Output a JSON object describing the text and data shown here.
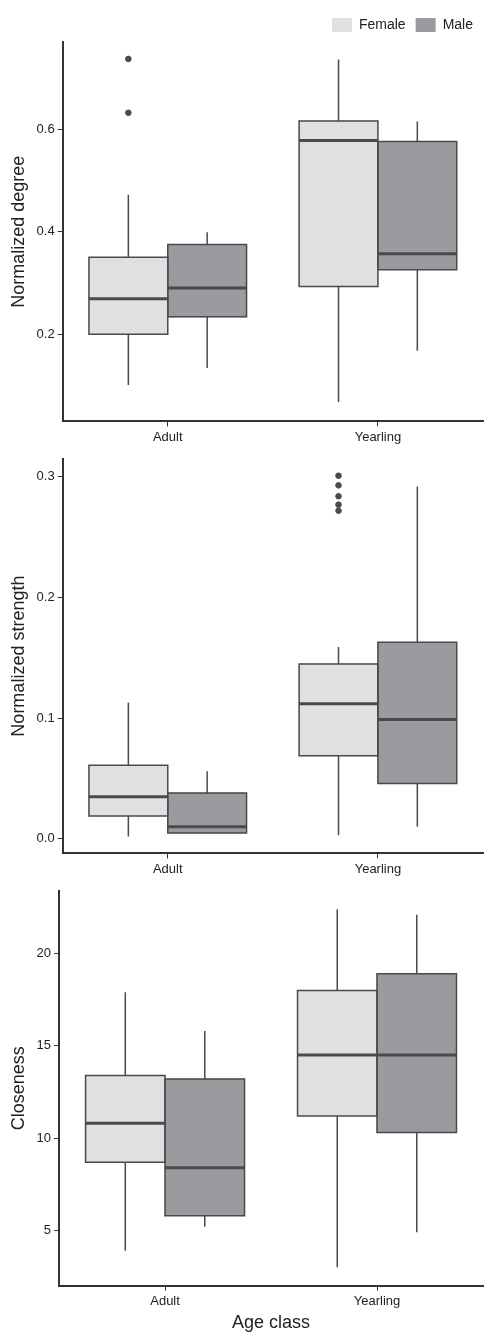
{
  "chart_data": [
    {
      "type": "box",
      "ylabel": "Normalized degree",
      "categories": [
        "Adult",
        "Yearling"
      ],
      "ylim": [
        0.03,
        0.77
      ],
      "yticks": [
        0.2,
        0.4,
        0.6
      ],
      "grid": false,
      "legend": "top right",
      "series": [
        {
          "name": "Female",
          "color": "#e0e0e2",
          "boxes": [
            {
              "low": 0.101,
              "q1": 0.2,
              "median": 0.269,
              "q3": 0.35,
              "high": 0.472,
              "outliers": [
                0.737,
                0.632
              ]
            },
            {
              "low": 0.068,
              "q1": 0.293,
              "median": 0.578,
              "q3": 0.616,
              "high": 0.736
            }
          ]
        },
        {
          "name": "Male",
          "color": "#9a9b9e",
          "boxes": [
            {
              "low": 0.134,
              "q1": 0.234,
              "median": 0.29,
              "q3": 0.375,
              "high": 0.399
            },
            {
              "low": 0.168,
              "q1": 0.326,
              "median": 0.357,
              "q3": 0.576,
              "high": 0.615
            }
          ]
        }
      ]
    },
    {
      "type": "box",
      "ylabel": "Normalized strength",
      "categories": [
        "Adult",
        "Yearling"
      ],
      "ylim": [
        -0.012,
        0.315
      ],
      "yticks": [
        {
          "value": 0,
          "label": "0.0"
        },
        0.1,
        0.2,
        0.3
      ],
      "grid": false,
      "series": [
        {
          "color": "#e0e0e2",
          "boxes": [
            {
              "low": 0.002,
              "q1": 0.019,
              "median": 0.035,
              "q3": 0.061,
              "high": 0.113
            },
            {
              "low": 0.003,
              "q1": 0.069,
              "median": 0.112,
              "q3": 0.145,
              "high": 0.159,
              "outliers": [
                0.301,
                0.293,
                0.284,
                0.277,
                0.272
              ]
            }
          ]
        },
        {
          "color": "#9a9b9e",
          "boxes": [
            {
              "low": 0.005,
              "q1": 0.005,
              "median": 0.01,
              "q3": 0.038,
              "high": 0.056
            },
            {
              "low": 0.01,
              "q1": 0.046,
              "median": 0.099,
              "q3": 0.163,
              "high": 0.292
            }
          ]
        }
      ]
    },
    {
      "type": "box",
      "ylabel": "Closeness",
      "xlabel": "Age class",
      "categories": [
        "Adult",
        "Yearling"
      ],
      "ylim": [
        2.0,
        23.4
      ],
      "yticks": [
        5,
        10,
        15,
        20
      ],
      "grid": false,
      "series": [
        {
          "color": "#e0e0e2",
          "boxes": [
            {
              "low": 3.9,
              "q1": 8.7,
              "median": 10.8,
              "q3": 13.4,
              "high": 17.9
            },
            {
              "low": 3.0,
              "q1": 11.2,
              "median": 14.5,
              "q3": 18.0,
              "high": 22.4
            }
          ]
        },
        {
          "color": "#9a9b9e",
          "boxes": [
            {
              "low": 5.2,
              "q1": 5.8,
              "median": 8.4,
              "q3": 13.2,
              "high": 15.8
            },
            {
              "low": 4.9,
              "q1": 10.3,
              "median": 14.5,
              "q3": 18.9,
              "high": 22.1
            }
          ]
        }
      ]
    }
  ]
}
